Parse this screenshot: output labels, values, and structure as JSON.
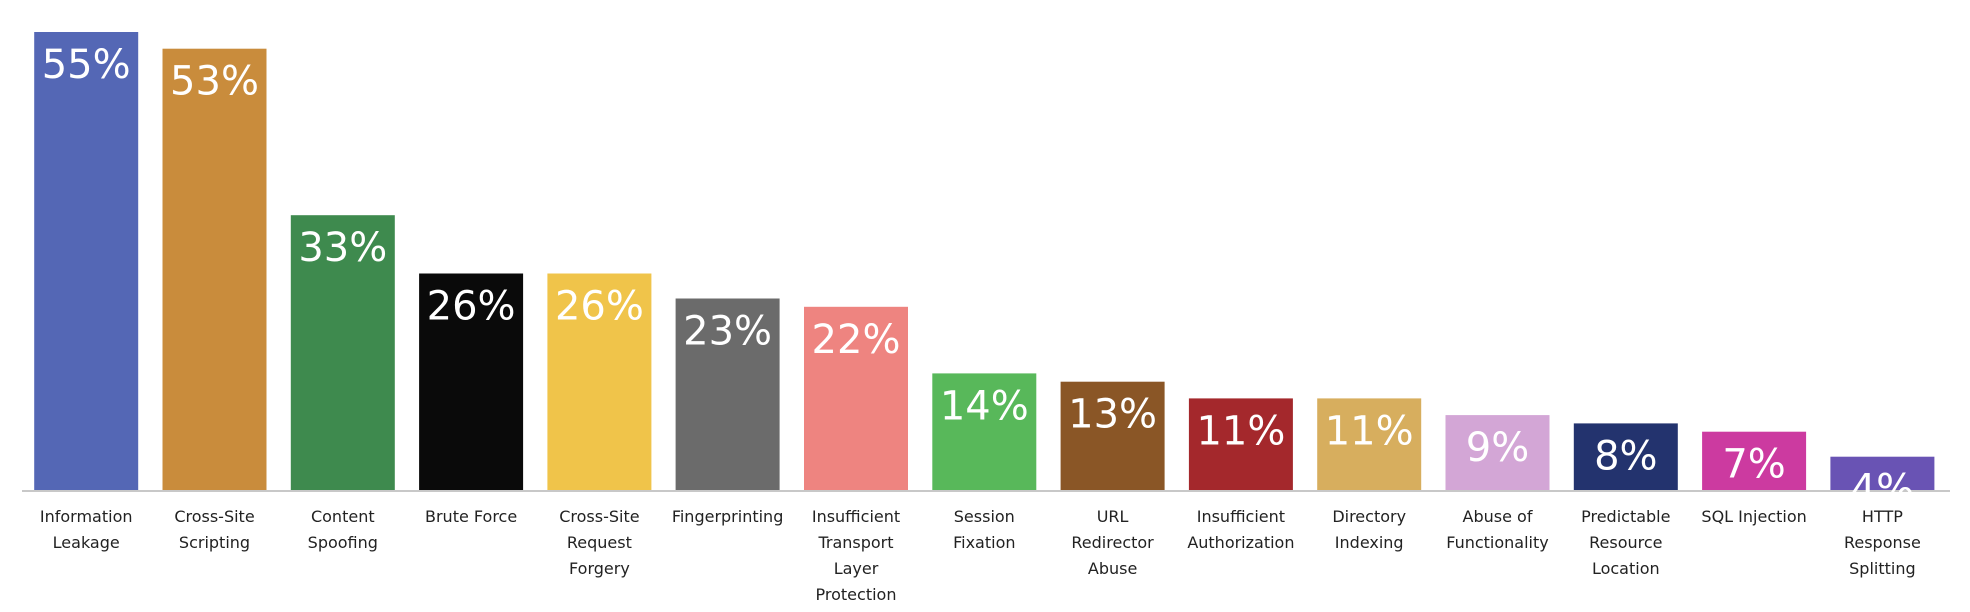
{
  "chart_data": {
    "type": "bar",
    "title": "",
    "xlabel": "",
    "ylabel": "",
    "ylim": [
      0,
      55
    ],
    "grid": false,
    "legend": "none",
    "categories": [
      [
        "Information",
        "Leakage"
      ],
      [
        "Cross-Site",
        "Scripting"
      ],
      [
        "Content",
        "Spoofing"
      ],
      [
        "Brute Force"
      ],
      [
        "Cross-Site",
        "Request",
        "Forgery"
      ],
      [
        "Fingerprinting"
      ],
      [
        "Insufficient",
        "Transport",
        "Layer",
        "Protection"
      ],
      [
        "Session",
        "Fixation"
      ],
      [
        "URL",
        "Redirector",
        "Abuse"
      ],
      [
        "Insufficient",
        "Authorization"
      ],
      [
        "Directory",
        "Indexing"
      ],
      [
        "Abuse of",
        "Functionality"
      ],
      [
        "Predictable",
        "Resource",
        "Location"
      ],
      [
        "SQL Injection"
      ],
      [
        "HTTP",
        "Response",
        "Splitting"
      ]
    ],
    "values": [
      55,
      53,
      33,
      26,
      26,
      23,
      22,
      14,
      13,
      11,
      11,
      9,
      8,
      7,
      4
    ],
    "value_labels": [
      "55%",
      "53%",
      "33%",
      "26%",
      "26%",
      "23%",
      "22%",
      "14%",
      "13%",
      "11%",
      "11%",
      "9%",
      "8%",
      "7%",
      "4%"
    ],
    "colors": [
      "#5467b5",
      "#c98c3c",
      "#3e8a4e",
      "#0a0a0a",
      "#f0c44a",
      "#6b6b6b",
      "#ee8480",
      "#58b85a",
      "#8a5626",
      "#a4282c",
      "#d7ae5e",
      "#d3a6d6",
      "#23336e",
      "#cc3aa0",
      "#6953b4"
    ]
  }
}
